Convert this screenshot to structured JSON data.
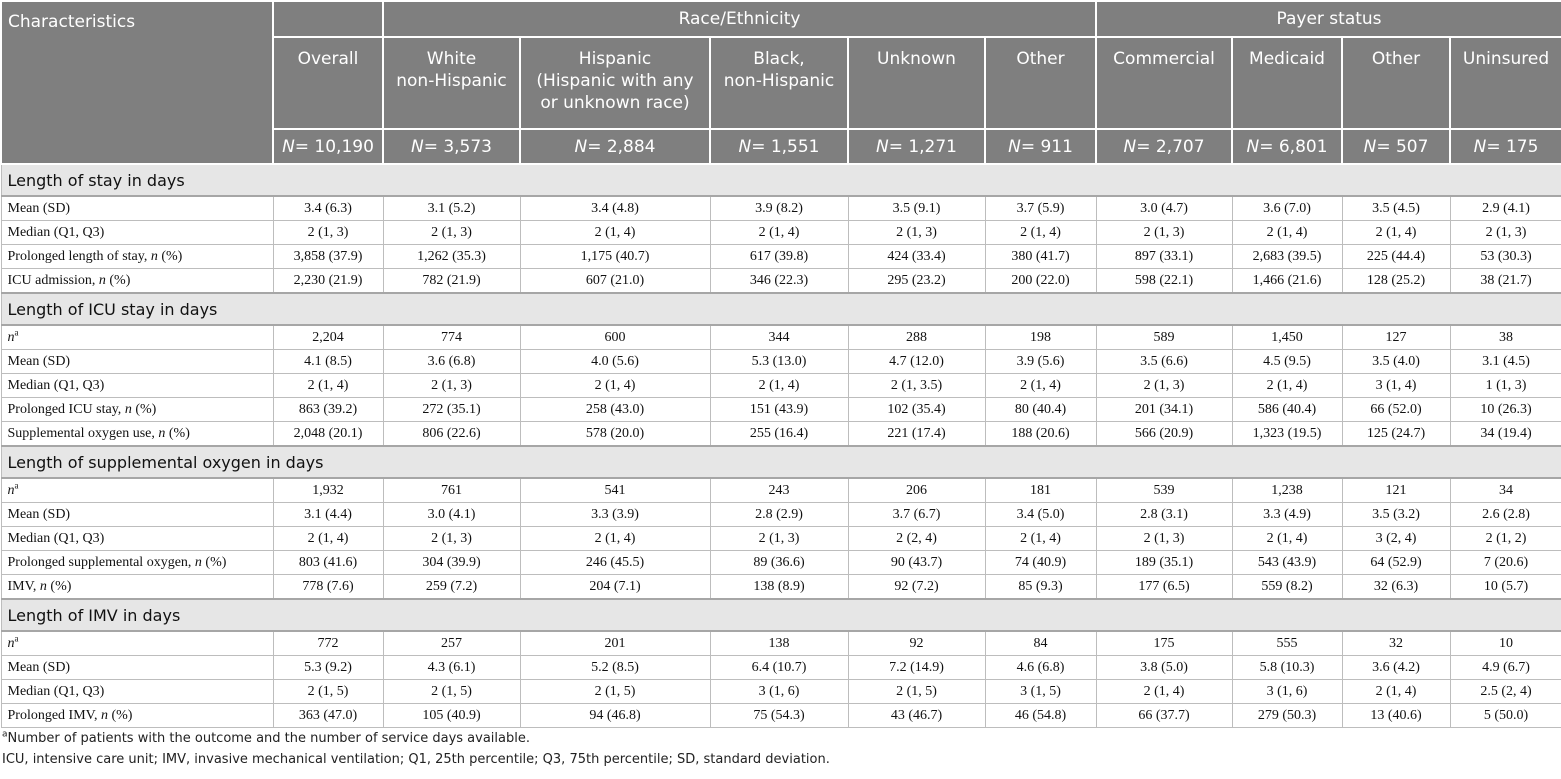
{
  "header": {
    "characteristics": "Characteristics",
    "overall": "Overall",
    "race_group": "Race/Ethnicity",
    "payer_group": "Payer status",
    "col_white": [
      "White",
      "non-Hispanic"
    ],
    "col_hispanic": [
      "Hispanic",
      "(Hispanic with any",
      "or unknown race)"
    ],
    "col_black": [
      "Black,",
      "non-Hispanic"
    ],
    "col_unknown": "Unknown",
    "col_other_race": "Other",
    "col_commercial": "Commercial",
    "col_medicaid": "Medicaid",
    "col_other_payer": "Other",
    "col_uninsured": "Uninsured",
    "n_prefix": "N",
    "n_values": [
      "= 10,190",
      "= 3,573",
      "= 2,884",
      "= 1,551",
      "= 1,271",
      "= 911",
      "= 2,707",
      "= 6,801",
      "= 507",
      "= 175"
    ]
  },
  "sections": [
    {
      "title": "Length of stay in days",
      "rows": [
        {
          "label": "Mean (SD)",
          "values": [
            "3.4 (6.3)",
            "3.1 (5.2)",
            "3.4 (4.8)",
            "3.9 (8.2)",
            "3.5 (9.1)",
            "3.7 (5.9)",
            "3.0 (4.7)",
            "3.6 (7.0)",
            "3.5 (4.5)",
            "2.9 (4.1)"
          ]
        },
        {
          "label": "Median (Q1, Q3)",
          "values": [
            "2 (1, 3)",
            "2 (1, 3)",
            "2 (1, 4)",
            "2 (1, 4)",
            "2 (1, 3)",
            "2 (1, 4)",
            "2 (1, 3)",
            "2 (1, 4)",
            "2 (1, 4)",
            "2 (1, 3)"
          ]
        },
        {
          "label": "Prolonged length of stay, ",
          "label_italic": "n",
          "label_tail": " (%)",
          "values": [
            "3,858 (37.9)",
            "1,262 (35.3)",
            "1,175 (40.7)",
            "617 (39.8)",
            "424 (33.4)",
            "380 (41.7)",
            "897 (33.1)",
            "2,683 (39.5)",
            "225 (44.4)",
            "53 (30.3)"
          ]
        },
        {
          "label": "ICU admission, ",
          "label_italic": "n",
          "label_tail": " (%)",
          "values": [
            "2,230 (21.9)",
            "782 (21.9)",
            "607 (21.0)",
            "346 (22.3)",
            "295 (23.2)",
            "200 (22.0)",
            "598 (22.1)",
            "1,466 (21.6)",
            "128 (25.2)",
            "38 (21.7)"
          ]
        }
      ]
    },
    {
      "title": "Length of ICU stay in days",
      "rows": [
        {
          "label": "",
          "label_italic": "n",
          "label_sup": "a",
          "values": [
            "2,204",
            "774",
            "600",
            "344",
            "288",
            "198",
            "589",
            "1,450",
            "127",
            "38"
          ]
        },
        {
          "label": "Mean (SD)",
          "values": [
            "4.1 (8.5)",
            "3.6 (6.8)",
            "4.0 (5.6)",
            "5.3 (13.0)",
            "4.7 (12.0)",
            "3.9 (5.6)",
            "3.5 (6.6)",
            "4.5 (9.5)",
            "3.5 (4.0)",
            "3.1 (4.5)"
          ]
        },
        {
          "label": "Median (Q1, Q3)",
          "values": [
            "2 (1, 4)",
            "2 (1, 3)",
            "2 (1, 4)",
            "2 (1, 4)",
            "2 (1, 3.5)",
            "2 (1, 4)",
            "2 (1, 3)",
            "2 (1, 4)",
            "3 (1, 4)",
            "1 (1, 3)"
          ]
        },
        {
          "label": "Prolonged ICU stay, ",
          "label_italic": "n",
          "label_tail": " (%)",
          "values": [
            "863 (39.2)",
            "272 (35.1)",
            "258 (43.0)",
            "151 (43.9)",
            "102 (35.4)",
            "80 (40.4)",
            "201 (34.1)",
            "586 (40.4)",
            "66 (52.0)",
            "10 (26.3)"
          ]
        },
        {
          "label": "Supplemental oxygen use, ",
          "label_italic": "n",
          "label_tail": " (%)",
          "values": [
            "2,048 (20.1)",
            "806 (22.6)",
            "578 (20.0)",
            "255 (16.4)",
            "221 (17.4)",
            "188 (20.6)",
            "566 (20.9)",
            "1,323 (19.5)",
            "125 (24.7)",
            "34 (19.4)"
          ]
        }
      ]
    },
    {
      "title": "Length of supplemental oxygen in days",
      "rows": [
        {
          "label": "",
          "label_italic": "n",
          "label_sup": "a",
          "values": [
            "1,932",
            "761",
            "541",
            "243",
            "206",
            "181",
            "539",
            "1,238",
            "121",
            "34"
          ]
        },
        {
          "label": "Mean (SD)",
          "values": [
            "3.1 (4.4)",
            "3.0 (4.1)",
            "3.3 (3.9)",
            "2.8 (2.9)",
            "3.7 (6.7)",
            "3.4 (5.0)",
            "2.8 (3.1)",
            "3.3 (4.9)",
            "3.5 (3.2)",
            "2.6 (2.8)"
          ]
        },
        {
          "label": "Median (Q1, Q3)",
          "values": [
            "2 (1, 4)",
            "2 (1, 3)",
            "2 (1, 4)",
            "2 (1, 3)",
            "2 (2, 4)",
            "2 (1, 4)",
            "2 (1, 3)",
            "2 (1, 4)",
            "3 (2, 4)",
            "2 (1, 2)"
          ]
        },
        {
          "label": "Prolonged supplemental oxygen, ",
          "label_italic": "n",
          "label_tail": " (%)",
          "values": [
            "803 (41.6)",
            "304 (39.9)",
            "246 (45.5)",
            "89 (36.6)",
            "90 (43.7)",
            "74 (40.9)",
            "189 (35.1)",
            "543 (43.9)",
            "64 (52.9)",
            "7 (20.6)"
          ]
        },
        {
          "label": "IMV, ",
          "label_italic": "n",
          "label_tail": " (%)",
          "values": [
            "778 (7.6)",
            "259 (7.2)",
            "204 (7.1)",
            "138 (8.9)",
            "92 (7.2)",
            "85 (9.3)",
            "177 (6.5)",
            "559 (8.2)",
            "32 (6.3)",
            "10 (5.7)"
          ]
        }
      ]
    },
    {
      "title": "Length of IMV in days",
      "rows": [
        {
          "label": "",
          "label_italic": "n",
          "label_sup": "a",
          "values": [
            "772",
            "257",
            "201",
            "138",
            "92",
            "84",
            "175",
            "555",
            "32",
            "10"
          ]
        },
        {
          "label": "Mean (SD)",
          "values": [
            "5.3 (9.2)",
            "4.3 (6.1)",
            "5.2 (8.5)",
            "6.4 (10.7)",
            "7.2 (14.9)",
            "4.6 (6.8)",
            "3.8 (5.0)",
            "5.8 (10.3)",
            "3.6 (4.2)",
            "4.9 (6.7)"
          ]
        },
        {
          "label": "Median (Q1, Q3)",
          "values": [
            "2 (1, 5)",
            "2 (1, 5)",
            "2 (1, 5)",
            "3 (1, 6)",
            "2 (1, 5)",
            "3 (1, 5)",
            "2 (1, 4)",
            "3 (1, 6)",
            "2 (1, 4)",
            "2.5 (2, 4)"
          ]
        },
        {
          "label": "Prolonged IMV, ",
          "label_italic": "n",
          "label_tail": " (%)",
          "values": [
            "363 (47.0)",
            "105 (40.9)",
            "94 (46.8)",
            "75 (54.3)",
            "43 (46.7)",
            "46 (54.8)",
            "66 (37.7)",
            "279 (50.3)",
            "13 (40.6)",
            "5 (50.0)"
          ]
        }
      ]
    }
  ],
  "footnotes": {
    "note_a_sup": "a",
    "note_a": "Number of patients with the outcome and the number of service days available.",
    "abbrev": "ICU, intensive care unit; IMV, invasive mechanical ventilation; Q1, 25th percentile; Q3, 75th percentile; SD, standard deviation."
  }
}
